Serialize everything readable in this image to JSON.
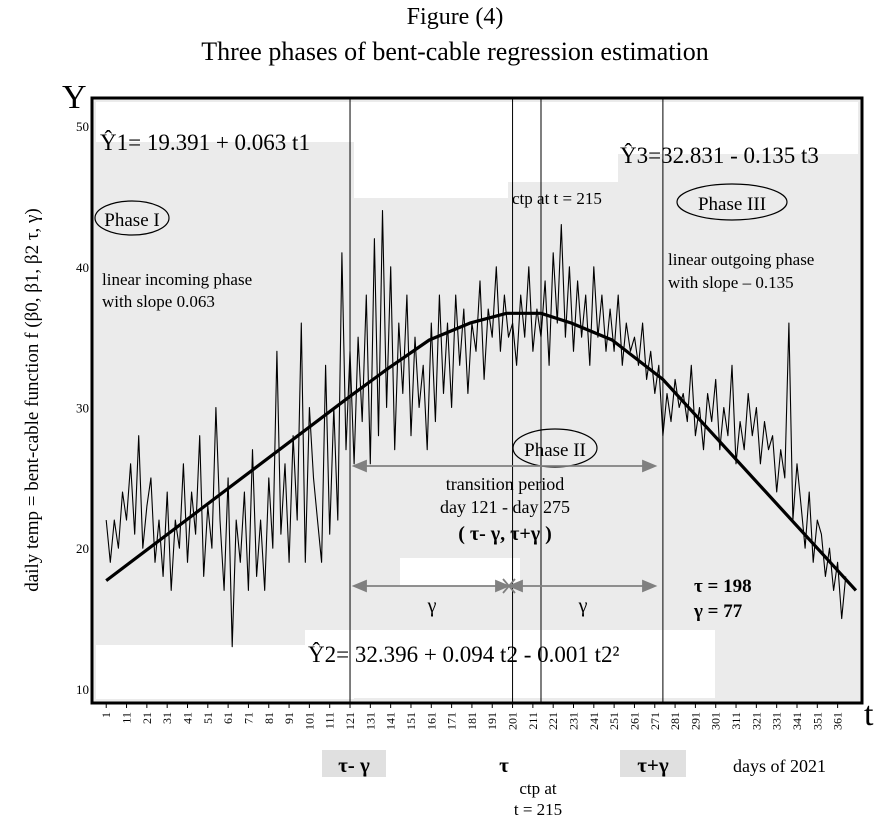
{
  "figure": {
    "number": "Figure (4)",
    "title": "Three phases of bent-cable regression estimation"
  },
  "axes": {
    "y_letter": "Y",
    "t_letter": "t",
    "ylabel": "daily temp = bent-cable function f (β0, β1, β2 τ, γ)",
    "xlabel": "days of 2021"
  },
  "phases": {
    "p1": "Phase I",
    "p2": "Phase II",
    "p3": "Phase III"
  },
  "equations": {
    "eq1": "Ŷ1= 19.391 + 0.063 t1",
    "eq2": "Ŷ2= 32.396 + 0.094 t2 - 0.001 t2²",
    "eq3": "Ŷ3=32.831 - 0.135 t3"
  },
  "annotations": {
    "incoming_1": "linear incoming phase",
    "incoming_2": "with slope 0.063",
    "outgoing_1": "linear outgoing phase",
    "outgoing_2": "with slope – 0.135",
    "ctp_top": "ctp at t = 215",
    "transition_1": "transition period",
    "transition_2": "day 121 - day 275",
    "transition_3": "( τ- γ, τ+γ )",
    "gamma_left": "γ",
    "gamma_right": "γ",
    "tau_value": "τ = 198",
    "gamma_value": "γ = 77",
    "mark_tau_minus_gamma": "τ- γ",
    "mark_tau": "τ",
    "mark_tau_plus_gamma": "τ+γ",
    "ctp_bottom_1": "ctp at",
    "ctp_bottom_2": "t = 215"
  },
  "colors": {
    "plot_bg": "#ebebeb",
    "box_bg": "#ffffff",
    "series": "#000000",
    "arrow": "#808080"
  },
  "chart_data": {
    "type": "line",
    "y_ticks": [
      "10",
      "20",
      "30",
      "40",
      "50"
    ],
    "ylim": [
      9,
      52
    ],
    "xlim": [
      -6,
      373
    ],
    "x_tick_labels": [
      "1",
      "11",
      "21",
      "31",
      "41",
      "51",
      "61",
      "71",
      "81",
      "91",
      "101",
      "111",
      "121",
      "131",
      "141",
      "151",
      "161",
      "171",
      "181",
      "191",
      "201",
      "211",
      "221",
      "231",
      "241",
      "251",
      "261",
      "271",
      "281",
      "291",
      "301",
      "311",
      "321",
      "331",
      "341",
      "351",
      "361"
    ],
    "grid": false,
    "vertical_markers": [
      121,
      201,
      215,
      275
    ],
    "series": [
      {
        "role": "fitted bent-cable",
        "x": [
          1,
          121,
          140,
          160,
          180,
          198,
          215,
          230,
          250,
          275,
          370
        ],
        "y": [
          17.7,
          30.8,
          32.8,
          34.8,
          36.0,
          36.7,
          36.7,
          36.0,
          34.8,
          32.0,
          17.0
        ]
      },
      {
        "role": "observed daily temp",
        "x": [
          1,
          3,
          5,
          7,
          9,
          11,
          13,
          15,
          17,
          19,
          21,
          23,
          25,
          27,
          29,
          31,
          33,
          35,
          37,
          39,
          41,
          43,
          45,
          47,
          49,
          51,
          53,
          55,
          57,
          59,
          61,
          63,
          65,
          67,
          69,
          71,
          73,
          75,
          77,
          79,
          81,
          83,
          85,
          87,
          89,
          91,
          93,
          95,
          97,
          99,
          101,
          103,
          105,
          107,
          109,
          111,
          113,
          115,
          117,
          119,
          121,
          123,
          125,
          127,
          129,
          131,
          133,
          135,
          137,
          139,
          141,
          143,
          145,
          147,
          149,
          151,
          153,
          155,
          157,
          159,
          161,
          163,
          165,
          167,
          169,
          171,
          173,
          175,
          177,
          179,
          181,
          183,
          185,
          187,
          189,
          191,
          193,
          195,
          197,
          199,
          201,
          203,
          205,
          207,
          209,
          211,
          213,
          215,
          217,
          219,
          221,
          223,
          225,
          227,
          229,
          231,
          233,
          235,
          237,
          239,
          241,
          243,
          245,
          247,
          249,
          251,
          253,
          255,
          257,
          259,
          261,
          263,
          265,
          267,
          269,
          271,
          273,
          275,
          277,
          279,
          281,
          283,
          285,
          287,
          289,
          291,
          293,
          295,
          297,
          299,
          301,
          303,
          305,
          307,
          309,
          311,
          313,
          315,
          317,
          319,
          321,
          323,
          325,
          327,
          329,
          331,
          333,
          335,
          337,
          339,
          341,
          343,
          345,
          347,
          349,
          351,
          353,
          355,
          357,
          359,
          361,
          363,
          365
        ],
        "y": [
          22,
          19,
          22,
          20,
          24,
          22,
          26,
          21,
          28,
          20,
          23,
          25,
          19,
          22,
          18,
          24,
          17,
          22,
          20,
          26,
          19,
          24,
          21,
          28,
          18,
          23,
          20,
          30,
          22,
          17,
          25,
          13,
          22,
          19,
          24,
          17,
          27,
          18,
          22,
          17,
          25,
          20,
          34,
          21,
          26,
          19,
          28,
          22,
          36,
          19,
          30,
          25,
          22,
          19,
          33,
          21,
          30,
          22,
          41,
          27,
          34,
          26,
          35,
          29,
          38,
          26,
          42,
          28,
          44,
          30,
          40,
          27,
          36,
          31,
          38,
          28,
          35,
          30,
          33,
          27,
          36,
          29,
          38,
          31,
          36,
          30,
          38,
          33,
          37,
          31,
          36,
          34,
          39,
          32,
          37,
          35,
          40,
          34,
          38,
          35,
          36,
          33,
          38,
          35,
          40,
          34,
          37,
          35,
          39,
          33,
          41,
          36,
          43,
          35,
          40,
          34,
          39,
          35,
          38,
          33,
          40,
          35,
          38,
          34,
          37,
          34,
          38,
          33,
          36,
          34,
          35,
          33,
          36,
          32,
          34,
          31,
          33,
          28,
          31,
          29,
          32,
          30,
          31,
          29,
          33,
          28,
          30,
          27,
          31,
          29,
          32,
          27,
          30,
          28,
          33,
          26,
          29,
          27,
          31,
          28,
          30,
          26,
          29,
          27,
          28,
          24,
          27,
          25,
          36,
          22,
          26,
          23,
          20,
          24,
          19,
          22,
          21,
          18,
          20,
          17,
          19,
          15,
          18
        ]
      }
    ]
  }
}
